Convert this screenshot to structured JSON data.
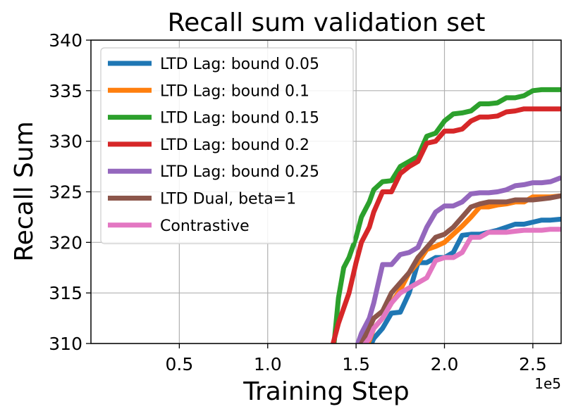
{
  "chart_data": {
    "type": "line",
    "title": "Recall sum validation set",
    "xlabel": "Training Step",
    "ylabel": "Recall Sum",
    "x_offset_label": "1e5",
    "xlim": [
      0,
      2.66
    ],
    "ylim": [
      310,
      340
    ],
    "xticks": [
      0.5,
      1.0,
      1.5,
      2.0,
      2.5
    ],
    "xtick_labels": [
      "0.5",
      "1.0",
      "1.5",
      "2.0",
      "2.5"
    ],
    "yticks": [
      310,
      315,
      320,
      325,
      330,
      335,
      340
    ],
    "ytick_labels": [
      "310",
      "315",
      "320",
      "325",
      "330",
      "335",
      "340"
    ],
    "grid": true,
    "legend_position": "upper-left",
    "series": [
      {
        "name": "LTD Lag: bound 0.05",
        "color": "#1f77b4",
        "x": [
          1.5,
          1.53,
          1.575,
          1.6,
          1.65,
          1.7,
          1.75,
          1.8,
          1.85,
          1.9,
          1.95,
          2.0,
          2.05,
          2.1,
          2.15,
          2.2,
          2.25,
          2.3,
          2.35,
          2.4,
          2.45,
          2.5,
          2.55,
          2.6,
          2.66
        ],
        "y": [
          307.5,
          308.5,
          309.5,
          310.5,
          311.5,
          313.0,
          313.1,
          315.0,
          318.0,
          318.0,
          318.5,
          318.5,
          319.0,
          320.7,
          320.8,
          320.8,
          321.0,
          321.2,
          321.5,
          321.8,
          321.8,
          322.0,
          322.2,
          322.2,
          322.3
        ]
      },
      {
        "name": "LTD Lag: bound 0.1",
        "color": "#ff7f0e",
        "x": [
          1.5,
          1.53,
          1.575,
          1.6,
          1.65,
          1.7,
          1.75,
          1.8,
          1.85,
          1.9,
          1.95,
          2.0,
          2.05,
          2.1,
          2.15,
          2.2,
          2.25,
          2.3,
          2.35,
          2.4,
          2.45,
          2.5,
          2.55,
          2.6,
          2.66
        ],
        "y": [
          308.0,
          309.0,
          310.3,
          311.5,
          312.5,
          314.0,
          315.3,
          317.0,
          318.0,
          319.3,
          319.6,
          320.0,
          320.8,
          321.6,
          322.5,
          323.5,
          323.5,
          323.7,
          323.8,
          324.0,
          324.0,
          324.5,
          324.5,
          324.5,
          324.6
        ]
      },
      {
        "name": "LTD Lag: bound 0.15",
        "color": "#2ca02c",
        "x": [
          1.37,
          1.4,
          1.43,
          1.46,
          1.5,
          1.53,
          1.575,
          1.6,
          1.65,
          1.7,
          1.75,
          1.8,
          1.85,
          1.9,
          1.95,
          2.0,
          2.05,
          2.1,
          2.15,
          2.2,
          2.25,
          2.3,
          2.35,
          2.4,
          2.45,
          2.5,
          2.55,
          2.6,
          2.66
        ],
        "y": [
          309.0,
          314.5,
          317.5,
          318.5,
          320.5,
          322.5,
          324.0,
          325.2,
          326.0,
          326.1,
          327.5,
          328.0,
          328.5,
          330.5,
          330.8,
          332.0,
          332.7,
          332.8,
          333.0,
          333.7,
          333.7,
          333.8,
          334.3,
          334.3,
          334.5,
          335.0,
          335.1,
          335.1,
          335.1
        ]
      },
      {
        "name": "LTD Lag: bound 0.2",
        "color": "#d62728",
        "x": [
          1.37,
          1.4,
          1.43,
          1.46,
          1.5,
          1.53,
          1.575,
          1.6,
          1.65,
          1.7,
          1.75,
          1.8,
          1.85,
          1.9,
          1.95,
          2.0,
          2.05,
          2.1,
          2.15,
          2.2,
          2.25,
          2.3,
          2.35,
          2.4,
          2.45,
          2.5,
          2.55,
          2.6,
          2.66
        ],
        "y": [
          310.0,
          312.0,
          313.5,
          315.0,
          318.0,
          320.0,
          321.5,
          323.0,
          325.0,
          325.0,
          326.8,
          327.5,
          328.0,
          329.8,
          330.0,
          331.0,
          331.0,
          331.2,
          332.0,
          332.4,
          332.4,
          332.5,
          332.9,
          333.0,
          333.2,
          333.2,
          333.2,
          333.2,
          333.2
        ]
      },
      {
        "name": "LTD Lag: bound 0.25",
        "color": "#9467bd",
        "x": [
          1.5,
          1.53,
          1.575,
          1.6,
          1.65,
          1.7,
          1.75,
          1.8,
          1.85,
          1.9,
          1.95,
          2.0,
          2.05,
          2.1,
          2.15,
          2.2,
          2.25,
          2.3,
          2.35,
          2.4,
          2.45,
          2.5,
          2.55,
          2.6,
          2.66
        ],
        "y": [
          309.5,
          311.0,
          312.5,
          314.0,
          317.8,
          317.8,
          318.8,
          319.0,
          319.5,
          321.5,
          323.0,
          323.6,
          323.6,
          324.0,
          324.8,
          324.9,
          324.9,
          325.0,
          325.2,
          325.6,
          325.7,
          325.9,
          325.9,
          326.0,
          326.4
        ]
      },
      {
        "name": "LTD Dual, beta=1",
        "color": "#8c564b",
        "x": [
          1.5,
          1.53,
          1.575,
          1.6,
          1.65,
          1.7,
          1.75,
          1.8,
          1.85,
          1.9,
          1.95,
          2.0,
          2.05,
          2.1,
          2.15,
          2.2,
          2.25,
          2.3,
          2.35,
          2.4,
          2.45,
          2.5,
          2.55,
          2.6,
          2.66
        ],
        "y": [
          308.5,
          310.0,
          311.5,
          312.5,
          313.2,
          315.0,
          316.0,
          317.0,
          318.5,
          319.5,
          320.5,
          320.8,
          321.5,
          322.5,
          323.5,
          323.8,
          324.0,
          324.0,
          324.0,
          324.2,
          324.2,
          324.2,
          324.3,
          324.4,
          324.6
        ]
      },
      {
        "name": "Contrastive",
        "color": "#e377c2",
        "x": [
          1.5,
          1.53,
          1.575,
          1.6,
          1.65,
          1.7,
          1.75,
          1.8,
          1.85,
          1.9,
          1.95,
          2.0,
          2.05,
          2.1,
          2.15,
          2.2,
          2.25,
          2.3,
          2.35,
          2.4,
          2.45,
          2.5,
          2.55,
          2.6,
          2.66
        ],
        "y": [
          308.0,
          309.5,
          310.5,
          311.5,
          312.5,
          314.0,
          315.0,
          315.5,
          316.0,
          316.5,
          318.2,
          318.5,
          318.5,
          319.0,
          320.5,
          320.5,
          321.0,
          321.0,
          321.0,
          321.1,
          321.2,
          321.2,
          321.2,
          321.3,
          321.3
        ]
      }
    ]
  }
}
